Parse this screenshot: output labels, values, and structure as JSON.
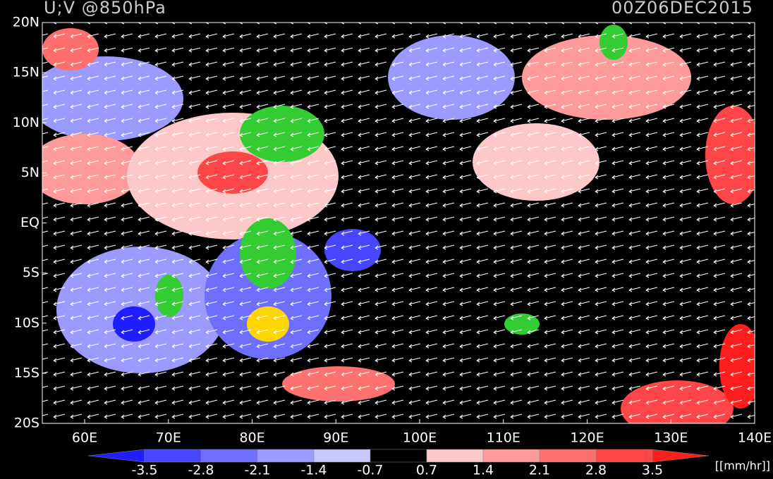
{
  "header": {
    "title": "U;V @850hPa",
    "time": "00Z06DEC2015"
  },
  "map": {
    "lat_labels": [
      "20N",
      "15N",
      "10N",
      "5N",
      "EQ",
      "5S",
      "10S",
      "15S",
      "20S"
    ],
    "lon_labels": [
      "60E",
      "70E",
      "80E",
      "90E",
      "100E",
      "110E",
      "120E",
      "130E",
      "140E"
    ]
  },
  "colorbar": {
    "levels": [
      -3.5,
      -2.8,
      -2.1,
      -1.4,
      -0.7,
      0.7,
      1.4,
      2.1,
      2.8,
      3.5
    ],
    "colors": [
      "#1e1eff",
      "#4646ff",
      "#6e6eff",
      "#9a9aff",
      "#c8c8ff",
      "#000000",
      "#ffc8c8",
      "#ff9a9a",
      "#ff6e6e",
      "#ff4646",
      "#ff1e1e"
    ],
    "unit": "[[mm/hr]]"
  }
}
